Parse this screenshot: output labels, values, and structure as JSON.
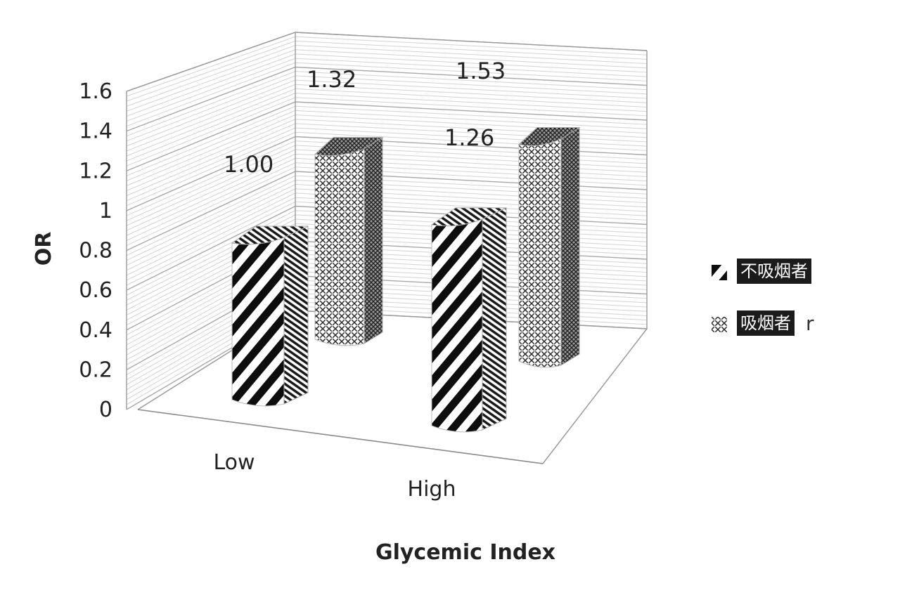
{
  "chart_data": {
    "type": "bar",
    "categories": [
      "Low",
      "High"
    ],
    "series": [
      {
        "name": "不吸烟者",
        "values": [
          1.0,
          1.26
        ],
        "pattern": "diagonal-stripes"
      },
      {
        "name": "吸烟者",
        "values": [
          1.32,
          1.53
        ],
        "pattern": "crosshatch"
      }
    ],
    "data_labels": [
      "1.00",
      "1.26",
      "1.32",
      "1.53"
    ],
    "xlabel": "Glycemic Index",
    "ylabel": "OR",
    "ylim": [
      0,
      1.6
    ],
    "yticks": [
      "0",
      "0.2",
      "0.4",
      "0.6",
      "0.8",
      "1",
      "1.2",
      "1.4",
      "1.6"
    ],
    "grid": true,
    "legend_position": "right",
    "style_3d": true,
    "legend_trailing_glyph": "r",
    "colors": {
      "bar_dark": "#111111",
      "bar_light": "#ffffff",
      "grid": "#bdbdbd",
      "axis_text": "#222222"
    }
  }
}
